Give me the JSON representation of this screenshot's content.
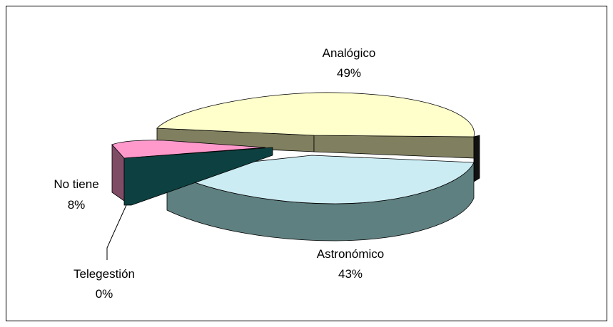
{
  "chart_data": {
    "type": "pie",
    "style": "3d-exploded",
    "title": "",
    "slices": [
      {
        "label": "Analógico",
        "value": 49,
        "pct_label": "49%",
        "top_color": "#FFFFCC",
        "side_color": "#808060"
      },
      {
        "label": "Astronómico",
        "value": 43,
        "pct_label": "43%",
        "top_color": "#CCECF4",
        "side_color": "#5F8080"
      },
      {
        "label": "Telegestión",
        "value": 0,
        "pct_label": "0%",
        "top_color": "#0D4040",
        "side_color": "#0D4040"
      },
      {
        "label": "No tiene",
        "value": 8,
        "pct_label": "8%",
        "top_color": "#FF99CC",
        "side_color": "#7F4C66"
      }
    ]
  }
}
